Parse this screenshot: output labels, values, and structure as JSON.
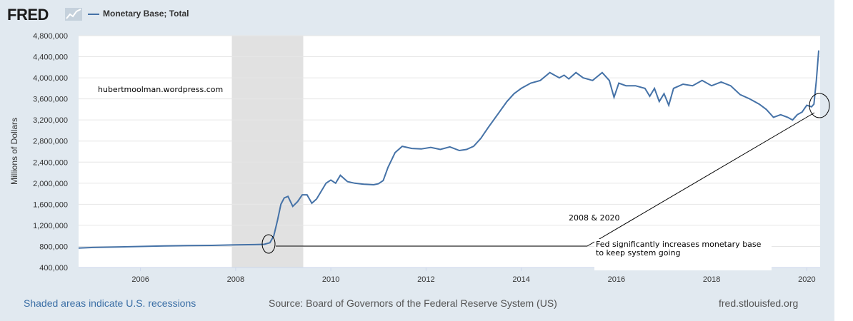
{
  "header": {
    "logo_text": "FRED",
    "legend_label": "Monetary Base; Total",
    "series_color": "#4572a7"
  },
  "footer": {
    "left": "Shaded areas indicate U.S. recessions",
    "source": "Source: Board of Governors of the Federal Reserve System (US)",
    "site": "fred.stlouisfed.org"
  },
  "chart_data": {
    "type": "line",
    "title": "",
    "xlabel": "",
    "ylabel": "Millions of Dollars",
    "xlim": [
      2004.7,
      2020.28
    ],
    "ylim": [
      400000,
      4800000
    ],
    "x_ticks": [
      2006,
      2008,
      2010,
      2012,
      2014,
      2016,
      2018,
      2020
    ],
    "y_ticks": [
      400000,
      800000,
      1200000,
      1600000,
      2000000,
      2400000,
      2800000,
      3200000,
      3600000,
      4000000,
      4400000,
      4800000
    ],
    "y_tick_labels": [
      "400,000",
      "800,000",
      "1,200,000",
      "1,600,000",
      "2,000,000",
      "2,400,000",
      "2,800,000",
      "3,200,000",
      "3,600,000",
      "4,000,000",
      "4,400,000",
      "4,800,000"
    ],
    "x_tick_labels": [
      "2006",
      "2008",
      "2010",
      "2012",
      "2014",
      "2016",
      "2018",
      "2020"
    ],
    "recessions": [
      [
        2007.92,
        2009.42
      ]
    ],
    "series": [
      {
        "name": "Monetary Base; Total",
        "x": [
          2004.7,
          2005.0,
          2005.5,
          2006.0,
          2006.5,
          2007.0,
          2007.5,
          2008.0,
          2008.4,
          2008.6,
          2008.72,
          2008.8,
          2008.88,
          2008.95,
          2009.02,
          2009.1,
          2009.2,
          2009.3,
          2009.4,
          2009.5,
          2009.6,
          2009.7,
          2009.8,
          2009.9,
          2010.0,
          2010.1,
          2010.2,
          2010.35,
          2010.5,
          2010.7,
          2010.9,
          2011.0,
          2011.1,
          2011.2,
          2011.35,
          2011.5,
          2011.7,
          2011.9,
          2012.1,
          2012.3,
          2012.5,
          2012.7,
          2012.85,
          2013.0,
          2013.15,
          2013.3,
          2013.5,
          2013.7,
          2013.85,
          2014.0,
          2014.2,
          2014.4,
          2014.6,
          2014.8,
          2014.9,
          2015.0,
          2015.15,
          2015.3,
          2015.5,
          2015.7,
          2015.85,
          2015.95,
          2016.05,
          2016.2,
          2016.4,
          2016.6,
          2016.7,
          2016.8,
          2016.9,
          2017.0,
          2017.1,
          2017.2,
          2017.4,
          2017.6,
          2017.8,
          2018.0,
          2018.2,
          2018.4,
          2018.6,
          2018.8,
          2019.0,
          2019.15,
          2019.3,
          2019.45,
          2019.6,
          2019.7,
          2019.8,
          2019.9,
          2020.0,
          2020.1,
          2020.15,
          2020.2,
          2020.25
        ],
        "y": [
          770000,
          780000,
          790000,
          800000,
          810000,
          815000,
          820000,
          830000,
          835000,
          840000,
          870000,
          1000000,
          1300000,
          1600000,
          1720000,
          1750000,
          1560000,
          1650000,
          1780000,
          1780000,
          1620000,
          1700000,
          1850000,
          2000000,
          2060000,
          2000000,
          2150000,
          2030000,
          2000000,
          1980000,
          1970000,
          1990000,
          2050000,
          2300000,
          2580000,
          2700000,
          2660000,
          2650000,
          2680000,
          2640000,
          2690000,
          2620000,
          2640000,
          2700000,
          2850000,
          3050000,
          3300000,
          3550000,
          3700000,
          3800000,
          3900000,
          3950000,
          4100000,
          4000000,
          4050000,
          3980000,
          4100000,
          4000000,
          3950000,
          4100000,
          3950000,
          3630000,
          3900000,
          3850000,
          3850000,
          3800000,
          3650000,
          3800000,
          3550000,
          3700000,
          3480000,
          3800000,
          3880000,
          3850000,
          3950000,
          3850000,
          3920000,
          3850000,
          3680000,
          3600000,
          3500000,
          3400000,
          3250000,
          3300000,
          3250000,
          3200000,
          3300000,
          3350000,
          3480000,
          3450000,
          3500000,
          3950000,
          4520000
        ]
      }
    ],
    "annotations": {
      "watermark": "hubertmoolman.wordpress.com",
      "label_years": "2008 & 2020",
      "note_line1": "Fed significantly increases monetary base",
      "note_line2": "to keep system going"
    }
  }
}
